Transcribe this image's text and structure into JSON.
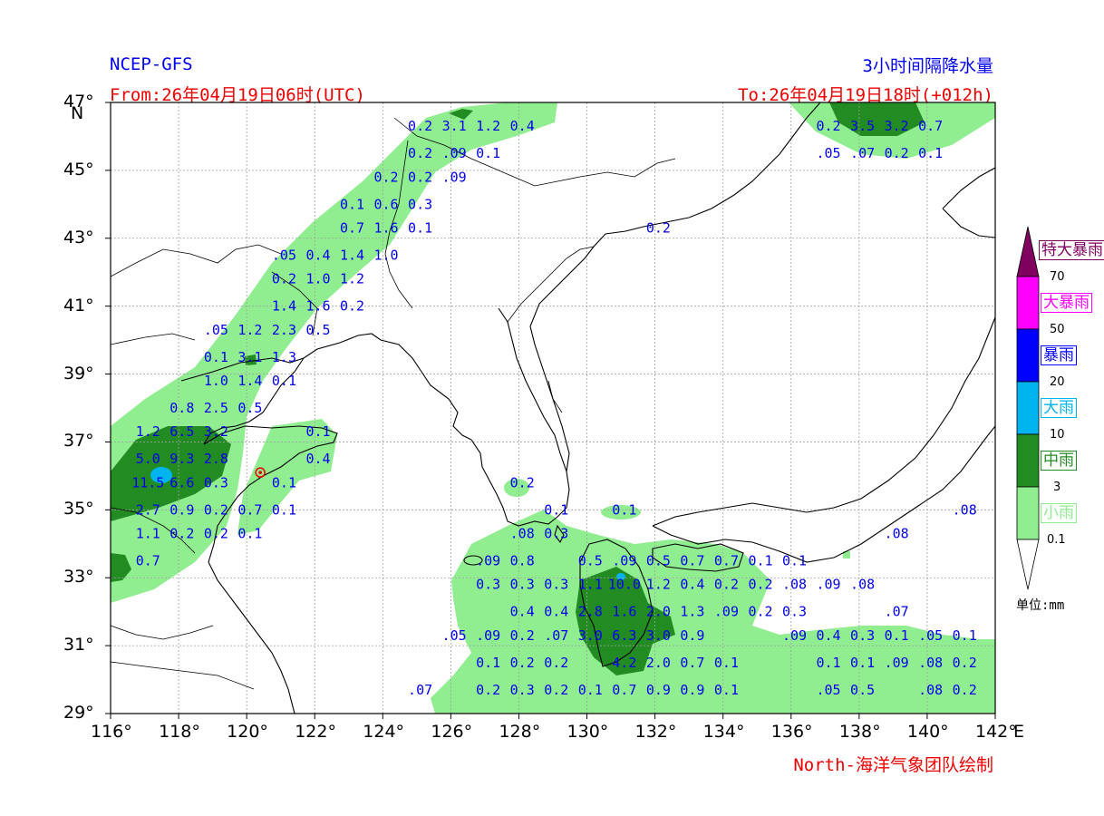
{
  "header": {
    "model": "NCEP-GFS",
    "title": "3小时间隔降水量",
    "from": "From:26年04月19日06时(UTC)",
    "to": "To:26年04月19日18时(+012h)",
    "credit": "North-海洋气象团队绘制"
  },
  "axes": {
    "lat_labels": [
      "47°",
      "45°",
      "43°",
      "41°",
      "39°",
      "37°",
      "35°",
      "33°",
      "31°",
      "29°"
    ],
    "lat_unit": "N",
    "lon_labels": [
      "116°",
      "118°",
      "120°",
      "122°",
      "124°",
      "126°",
      "128°",
      "130°",
      "132°",
      "134°",
      "136°",
      "138°",
      "140°",
      "142°"
    ],
    "lon_unit": "E"
  },
  "legend": {
    "unit": "单位:mm",
    "classes": [
      {
        "name": "特大暴雨",
        "color": "#800060",
        "label_color": "#800060"
      },
      {
        "name": "大暴雨",
        "color": "#ff00ff",
        "label_color": "#ff00ff"
      },
      {
        "name": "暴雨",
        "color": "#0000ff",
        "label_color": "#0000ff"
      },
      {
        "name": "大雨",
        "color": "#00b4f0",
        "label_color": "#00b4f0"
      },
      {
        "name": "中雨",
        "color": "#228b22",
        "label_color": "#228b22"
      },
      {
        "name": "小雨",
        "color": "#90ee90",
        "label_color": "#90ee90"
      }
    ],
    "thresholds": [
      "70",
      "50",
      "20",
      "10",
      "3",
      "0.1"
    ]
  },
  "colors": {
    "light_rain": "#90ee90",
    "moderate_rain": "#228b22",
    "heavy_rain": "#00b4f0",
    "value_text": "#0000ee"
  },
  "values": [
    {
      "t": "0.2",
      "lon": 125.1,
      "lat": 46.3
    },
    {
      "t": "3.1",
      "lon": 126.1,
      "lat": 46.3
    },
    {
      "t": "1.2",
      "lon": 127.1,
      "lat": 46.3
    },
    {
      "t": "0.4",
      "lon": 128.1,
      "lat": 46.3
    },
    {
      "t": "0.2",
      "lon": 125.1,
      "lat": 45.5
    },
    {
      "t": ".09",
      "lon": 126.1,
      "lat": 45.5
    },
    {
      "t": "0.1",
      "lon": 127.1,
      "lat": 45.5
    },
    {
      "t": "0.2",
      "lon": 124.1,
      "lat": 44.8
    },
    {
      "t": "0.2",
      "lon": 125.1,
      "lat": 44.8
    },
    {
      "t": ".09",
      "lon": 126.1,
      "lat": 44.8
    },
    {
      "t": "0.1",
      "lon": 123.1,
      "lat": 44.0
    },
    {
      "t": "0.6",
      "lon": 124.1,
      "lat": 44.0
    },
    {
      "t": "0.3",
      "lon": 125.1,
      "lat": 44.0
    },
    {
      "t": "0.7",
      "lon": 123.1,
      "lat": 43.3
    },
    {
      "t": "1.6",
      "lon": 124.1,
      "lat": 43.3
    },
    {
      "t": "0.1",
      "lon": 125.1,
      "lat": 43.3
    },
    {
      "t": ".05",
      "lon": 121.1,
      "lat": 42.5
    },
    {
      "t": "0.4",
      "lon": 122.1,
      "lat": 42.5
    },
    {
      "t": "1.4",
      "lon": 123.1,
      "lat": 42.5
    },
    {
      "t": "1.0",
      "lon": 124.1,
      "lat": 42.5
    },
    {
      "t": "0.2",
      "lon": 121.1,
      "lat": 41.8
    },
    {
      "t": "1.0",
      "lon": 122.1,
      "lat": 41.8
    },
    {
      "t": "1.2",
      "lon": 123.1,
      "lat": 41.8
    },
    {
      "t": "1.4",
      "lon": 121.1,
      "lat": 41.0
    },
    {
      "t": "1.6",
      "lon": 122.1,
      "lat": 41.0
    },
    {
      "t": "0.2",
      "lon": 123.1,
      "lat": 41.0
    },
    {
      "t": ".05",
      "lon": 119.1,
      "lat": 40.3
    },
    {
      "t": "1.2",
      "lon": 120.1,
      "lat": 40.3
    },
    {
      "t": "2.3",
      "lon": 121.1,
      "lat": 40.3
    },
    {
      "t": "0.5",
      "lon": 122.1,
      "lat": 40.3
    },
    {
      "t": "0.1",
      "lon": 119.1,
      "lat": 39.5
    },
    {
      "t": "3.1",
      "lon": 120.1,
      "lat": 39.5
    },
    {
      "t": "1.3",
      "lon": 121.1,
      "lat": 39.5
    },
    {
      "t": "1.0",
      "lon": 119.1,
      "lat": 38.8
    },
    {
      "t": "1.4",
      "lon": 120.1,
      "lat": 38.8
    },
    {
      "t": "0.1",
      "lon": 121.1,
      "lat": 38.8
    },
    {
      "t": "0.8",
      "lon": 118.1,
      "lat": 38.0
    },
    {
      "t": "2.5",
      "lon": 119.1,
      "lat": 38.0
    },
    {
      "t": "0.5",
      "lon": 120.1,
      "lat": 38.0
    },
    {
      "t": "1.2",
      "lon": 117.1,
      "lat": 37.3
    },
    {
      "t": "6.5",
      "lon": 118.1,
      "lat": 37.3
    },
    {
      "t": "3.2",
      "lon": 119.1,
      "lat": 37.3
    },
    {
      "t": "0.1",
      "lon": 122.1,
      "lat": 37.3
    },
    {
      "t": "5.0",
      "lon": 117.1,
      "lat": 36.5
    },
    {
      "t": "9.3",
      "lon": 118.1,
      "lat": 36.5
    },
    {
      "t": "2.8",
      "lon": 119.1,
      "lat": 36.5
    },
    {
      "t": "0.4",
      "lon": 122.1,
      "lat": 36.5
    },
    {
      "t": "11.5",
      "lon": 117.1,
      "lat": 35.8
    },
    {
      "t": "6.6",
      "lon": 118.1,
      "lat": 35.8
    },
    {
      "t": "0.3",
      "lon": 119.1,
      "lat": 35.8
    },
    {
      "t": "0.1",
      "lon": 121.1,
      "lat": 35.8
    },
    {
      "t": "0.2",
      "lon": 128.1,
      "lat": 35.8
    },
    {
      "t": "2.7",
      "lon": 117.1,
      "lat": 35.0
    },
    {
      "t": "0.9",
      "lon": 118.1,
      "lat": 35.0
    },
    {
      "t": "0.2",
      "lon": 119.1,
      "lat": 35.0
    },
    {
      "t": "0.7",
      "lon": 120.1,
      "lat": 35.0
    },
    {
      "t": "0.1",
      "lon": 121.1,
      "lat": 35.0
    },
    {
      "t": "0.1",
      "lon": 129.1,
      "lat": 35.0
    },
    {
      "t": "0.1",
      "lon": 131.1,
      "lat": 35.0
    },
    {
      "t": ".08",
      "lon": 141.1,
      "lat": 35.0
    },
    {
      "t": "1.1",
      "lon": 117.1,
      "lat": 34.3
    },
    {
      "t": "0.2",
      "lon": 118.1,
      "lat": 34.3
    },
    {
      "t": "0.2",
      "lon": 119.1,
      "lat": 34.3
    },
    {
      "t": "0.1",
      "lon": 120.1,
      "lat": 34.3
    },
    {
      "t": ".08",
      "lon": 128.1,
      "lat": 34.3
    },
    {
      "t": "0.3",
      "lon": 129.1,
      "lat": 34.3
    },
    {
      "t": ".08",
      "lon": 139.1,
      "lat": 34.3
    },
    {
      "t": "0.7",
      "lon": 117.1,
      "lat": 33.5
    },
    {
      "t": ".09",
      "lon": 127.1,
      "lat": 33.5
    },
    {
      "t": "0.8",
      "lon": 128.1,
      "lat": 33.5
    },
    {
      "t": "0.5",
      "lon": 130.1,
      "lat": 33.5
    },
    {
      "t": ".09",
      "lon": 131.1,
      "lat": 33.5
    },
    {
      "t": "0.5",
      "lon": 132.1,
      "lat": 33.5
    },
    {
      "t": "0.7",
      "lon": 133.1,
      "lat": 33.5
    },
    {
      "t": "0.7",
      "lon": 134.1,
      "lat": 33.5
    },
    {
      "t": "0.1",
      "lon": 135.1,
      "lat": 33.5
    },
    {
      "t": "0.1",
      "lon": 136.1,
      "lat": 33.5
    },
    {
      "t": "0.3",
      "lon": 127.1,
      "lat": 32.8
    },
    {
      "t": "0.3",
      "lon": 128.1,
      "lat": 32.8
    },
    {
      "t": "0.3",
      "lon": 129.1,
      "lat": 32.8
    },
    {
      "t": "1.1",
      "lon": 130.1,
      "lat": 32.8
    },
    {
      "t": "10.0",
      "lon": 131.1,
      "lat": 32.8
    },
    {
      "t": "1.2",
      "lon": 132.1,
      "lat": 32.8
    },
    {
      "t": "0.4",
      "lon": 133.1,
      "lat": 32.8
    },
    {
      "t": "0.2",
      "lon": 134.1,
      "lat": 32.8
    },
    {
      "t": "0.2",
      "lon": 135.1,
      "lat": 32.8
    },
    {
      "t": ".08",
      "lon": 136.1,
      "lat": 32.8
    },
    {
      "t": ".09",
      "lon": 137.1,
      "lat": 32.8
    },
    {
      "t": ".08",
      "lon": 138.1,
      "lat": 32.8
    },
    {
      "t": "0.4",
      "lon": 128.1,
      "lat": 32.0
    },
    {
      "t": "0.4",
      "lon": 129.1,
      "lat": 32.0
    },
    {
      "t": "2.8",
      "lon": 130.1,
      "lat": 32.0
    },
    {
      "t": "1.6",
      "lon": 131.1,
      "lat": 32.0
    },
    {
      "t": "2.0",
      "lon": 132.1,
      "lat": 32.0
    },
    {
      "t": "1.3",
      "lon": 133.1,
      "lat": 32.0
    },
    {
      "t": ".09",
      "lon": 134.1,
      "lat": 32.0
    },
    {
      "t": "0.2",
      "lon": 135.1,
      "lat": 32.0
    },
    {
      "t": "0.3",
      "lon": 136.1,
      "lat": 32.0
    },
    {
      "t": ".07",
      "lon": 139.1,
      "lat": 32.0
    },
    {
      "t": ".05",
      "lon": 126.1,
      "lat": 31.3
    },
    {
      "t": ".09",
      "lon": 127.1,
      "lat": 31.3
    },
    {
      "t": "0.2",
      "lon": 128.1,
      "lat": 31.3
    },
    {
      "t": ".07",
      "lon": 129.1,
      "lat": 31.3
    },
    {
      "t": "3.0",
      "lon": 130.1,
      "lat": 31.3
    },
    {
      "t": "6.3",
      "lon": 131.1,
      "lat": 31.3
    },
    {
      "t": "3.0",
      "lon": 132.1,
      "lat": 31.3
    },
    {
      "t": "0.9",
      "lon": 133.1,
      "lat": 31.3
    },
    {
      "t": ".09",
      "lon": 136.1,
      "lat": 31.3
    },
    {
      "t": "0.4",
      "lon": 137.1,
      "lat": 31.3
    },
    {
      "t": "0.3",
      "lon": 138.1,
      "lat": 31.3
    },
    {
      "t": "0.1",
      "lon": 139.1,
      "lat": 31.3
    },
    {
      "t": ".05",
      "lon": 140.1,
      "lat": 31.3
    },
    {
      "t": "0.1",
      "lon": 141.1,
      "lat": 31.3
    },
    {
      "t": "0.1",
      "lon": 127.1,
      "lat": 30.5
    },
    {
      "t": "0.2",
      "lon": 128.1,
      "lat": 30.5
    },
    {
      "t": "0.2",
      "lon": 129.1,
      "lat": 30.5
    },
    {
      "t": "4.2",
      "lon": 131.1,
      "lat": 30.5
    },
    {
      "t": "2.0",
      "lon": 132.1,
      "lat": 30.5
    },
    {
      "t": "0.7",
      "lon": 133.1,
      "lat": 30.5
    },
    {
      "t": "0.1",
      "lon": 134.1,
      "lat": 30.5
    },
    {
      "t": "0.1",
      "lon": 137.1,
      "lat": 30.5
    },
    {
      "t": "0.1",
      "lon": 138.1,
      "lat": 30.5
    },
    {
      "t": ".09",
      "lon": 139.1,
      "lat": 30.5
    },
    {
      "t": ".08",
      "lon": 140.1,
      "lat": 30.5
    },
    {
      "t": "0.2",
      "lon": 141.1,
      "lat": 30.5
    },
    {
      "t": ".07",
      "lon": 125.1,
      "lat": 29.7
    },
    {
      "t": "0.2",
      "lon": 127.1,
      "lat": 29.7
    },
    {
      "t": "0.3",
      "lon": 128.1,
      "lat": 29.7
    },
    {
      "t": "0.2",
      "lon": 129.1,
      "lat": 29.7
    },
    {
      "t": "0.1",
      "lon": 130.1,
      "lat": 29.7
    },
    {
      "t": "0.7",
      "lon": 131.1,
      "lat": 29.7
    },
    {
      "t": "0.9",
      "lon": 132.1,
      "lat": 29.7
    },
    {
      "t": "0.9",
      "lon": 133.1,
      "lat": 29.7
    },
    {
      "t": "0.1",
      "lon": 134.1,
      "lat": 29.7
    },
    {
      "t": ".05",
      "lon": 137.1,
      "lat": 29.7
    },
    {
      "t": "0.5",
      "lon": 138.1,
      "lat": 29.7
    },
    {
      "t": ".08",
      "lon": 140.1,
      "lat": 29.7
    },
    {
      "t": "0.2",
      "lon": 141.1,
      "lat": 29.7
    },
    {
      "t": "0.2",
      "lon": 137.1,
      "lat": 46.3
    },
    {
      "t": "3.5",
      "lon": 138.1,
      "lat": 46.3
    },
    {
      "t": "3.2",
      "lon": 139.1,
      "lat": 46.3
    },
    {
      "t": "0.7",
      "lon": 140.1,
      "lat": 46.3
    },
    {
      "t": ".05",
      "lon": 137.1,
      "lat": 45.5
    },
    {
      "t": ".07",
      "lon": 138.1,
      "lat": 45.5
    },
    {
      "t": "0.2",
      "lon": 139.1,
      "lat": 45.5
    },
    {
      "t": "0.1",
      "lon": 140.1,
      "lat": 45.5
    },
    {
      "t": "0.2",
      "lon": 132.1,
      "lat": 43.3
    }
  ],
  "station": {
    "lon": 120.4,
    "lat": 36.1
  }
}
